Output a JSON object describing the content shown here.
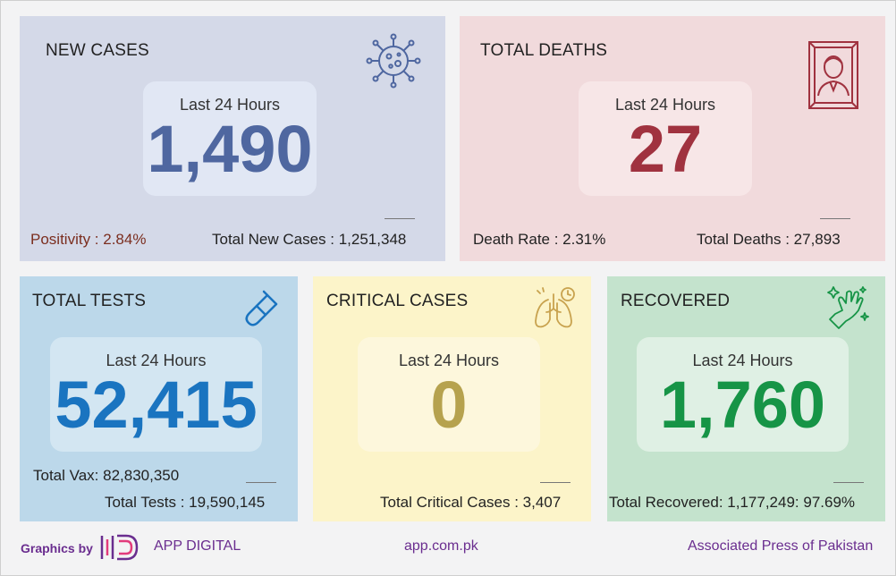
{
  "cards": {
    "new_cases": {
      "title": "NEW CASES",
      "period": "Last 24 Hours",
      "value": "1,490",
      "left_stat": "Positivity : 2.84%",
      "right_stat": "Total New Cases : 1,251,348",
      "icon": "virus-icon",
      "accent": "#4f67a0"
    },
    "total_deaths": {
      "title": "TOTAL DEATHS",
      "period": "Last 24 Hours",
      "value": "27",
      "left_stat": "Death Rate : 2.31%",
      "right_stat": "Total Deaths : 27,893",
      "icon": "portrait-frame-icon",
      "accent": "#a0323f"
    },
    "total_tests": {
      "title": "TOTAL TESTS",
      "period": "Last 24 Hours",
      "value": "52,415",
      "stat_1": "Total Vax: 82,830,350",
      "stat_2": "Total Tests : 19,590,145",
      "icon": "test-tube-icon",
      "accent": "#1a74c0"
    },
    "critical_cases": {
      "title": "CRITICAL CASES",
      "period": "Last 24 Hours",
      "value": "0",
      "stat_1": "Total Critical Cases : 3,407",
      "icon": "lungs-icon",
      "accent": "#b6a24e"
    },
    "recovered": {
      "title": "RECOVERED",
      "period": "Last 24 Hours",
      "value": "1,760",
      "stat_1": "Total Recovered: 1,177,249: 97.69%",
      "icon": "clean-hand-icon",
      "accent": "#169446"
    }
  },
  "footer": {
    "graphics_by": "Graphics by",
    "brand": "APP DIGITAL",
    "site": "app.com.pk",
    "org": "Associated Press of Pakistan",
    "color": "#6a2d8f"
  }
}
